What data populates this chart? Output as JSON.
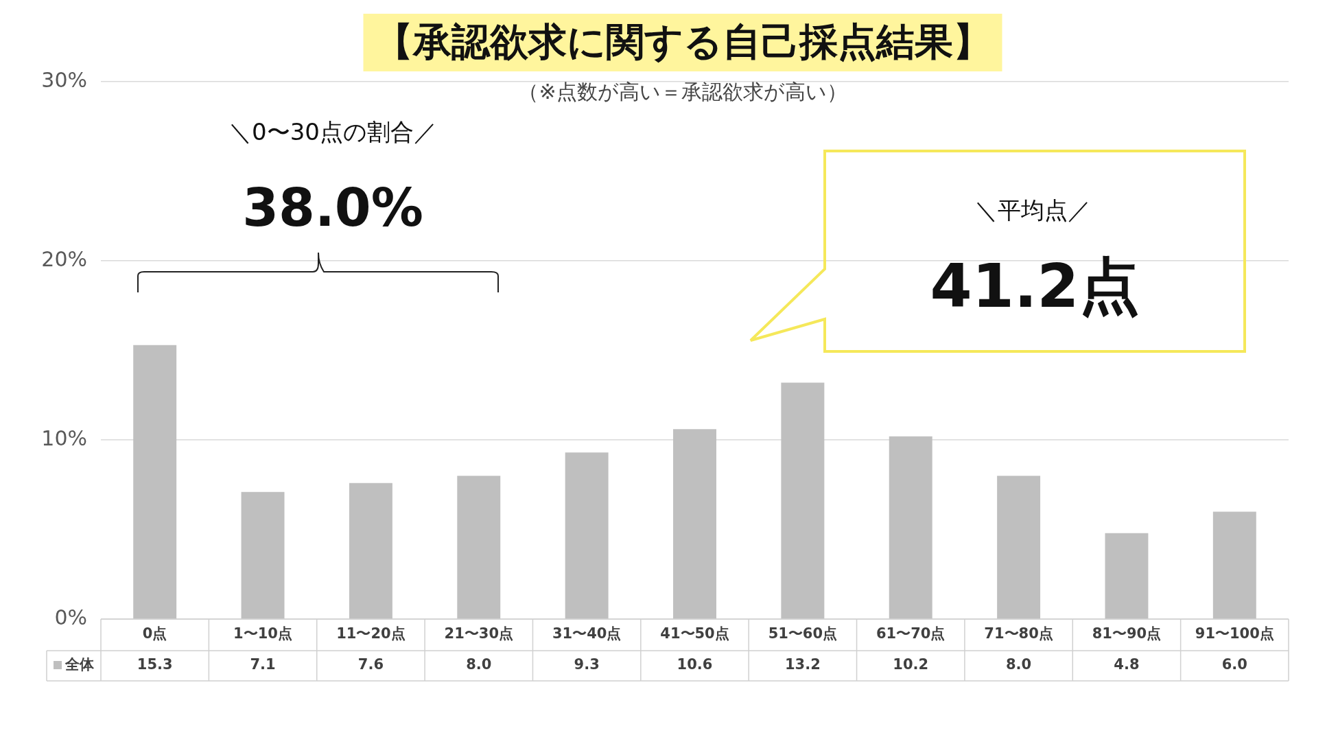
{
  "chart_data": {
    "type": "bar",
    "title": "【承認欲求に関する自己採点結果】",
    "subtitle": "（※点数が高い＝承認欲求が高い）",
    "categories": [
      "0点",
      "1〜10点",
      "11〜20点",
      "21〜30点",
      "31〜40点",
      "41〜50点",
      "51〜60点",
      "61〜70点",
      "71〜80点",
      "81〜90点",
      "91〜100点"
    ],
    "series": [
      {
        "name": "全体",
        "color": "#bfbfbf",
        "values": [
          15.3,
          7.1,
          7.6,
          8.0,
          9.3,
          10.6,
          13.2,
          10.2,
          8.0,
          4.8,
          6.0
        ],
        "value_labels": [
          "15.3",
          "7.1",
          "7.6",
          "8.0",
          "9.3",
          "10.6",
          "13.2",
          "10.2",
          "8.0",
          "4.8",
          "6.0"
        ]
      }
    ],
    "ylim": [
      0,
      30
    ],
    "yticks": [
      {
        "value": 0,
        "label": "0%"
      },
      {
        "value": 10,
        "label": "10%"
      },
      {
        "value": 20,
        "label": "20%"
      },
      {
        "value": 30,
        "label": "30%"
      }
    ],
    "grid": "y",
    "legend": "bottom",
    "annotations": [
      "＼0〜30点の割合／",
      "38.0%",
      "＼平均点／",
      "41.2点"
    ]
  }
}
